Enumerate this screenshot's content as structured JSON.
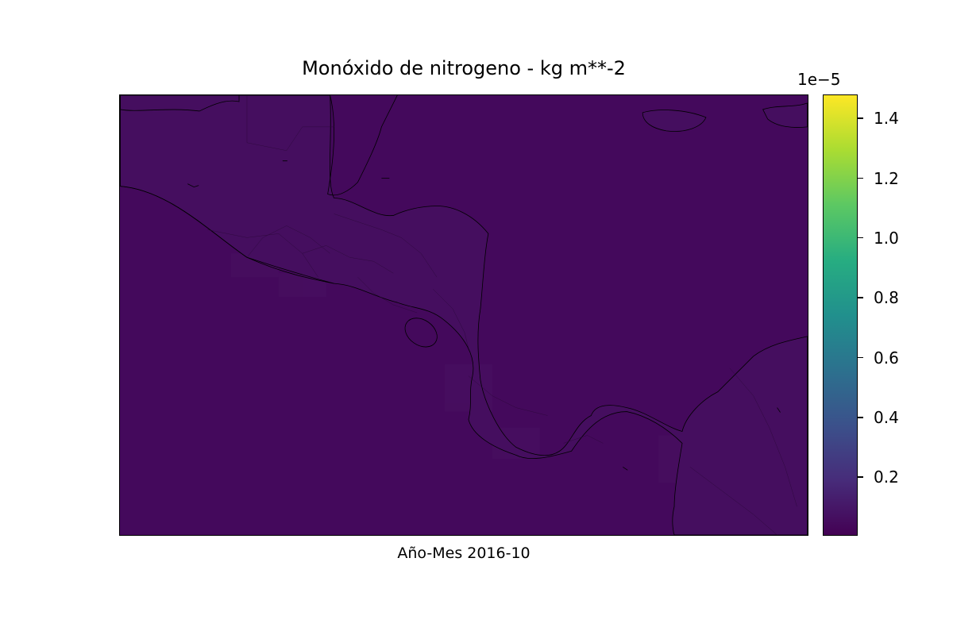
{
  "title": "Monóxido de nitrogeno - kg m**-2",
  "xlabel": "Año-Mes 2016-10",
  "colorbar": {
    "exponent_label": "1e−5",
    "ticks": [
      {
        "value": 1.4,
        "label": "1.4"
      },
      {
        "value": 1.2,
        "label": "1.2"
      },
      {
        "value": 1.0,
        "label": "1.0"
      },
      {
        "value": 0.8,
        "label": "0.8"
      },
      {
        "value": 0.6,
        "label": "0.6"
      },
      {
        "value": 0.4,
        "label": "0.4"
      },
      {
        "value": 0.2,
        "label": "0.2"
      }
    ],
    "vmin": 0.005,
    "vmax": 1.48,
    "colormap": "viridis",
    "colors": [
      "#440154",
      "#472c7a",
      "#3b518b",
      "#2c718e",
      "#21908d",
      "#27ad81",
      "#5cc863",
      "#aadc32",
      "#fde725"
    ]
  },
  "map": {
    "region": "Central America",
    "ocean_color": "#44095c",
    "land_color": "#450e5f",
    "coastline_color": "#000000"
  }
}
